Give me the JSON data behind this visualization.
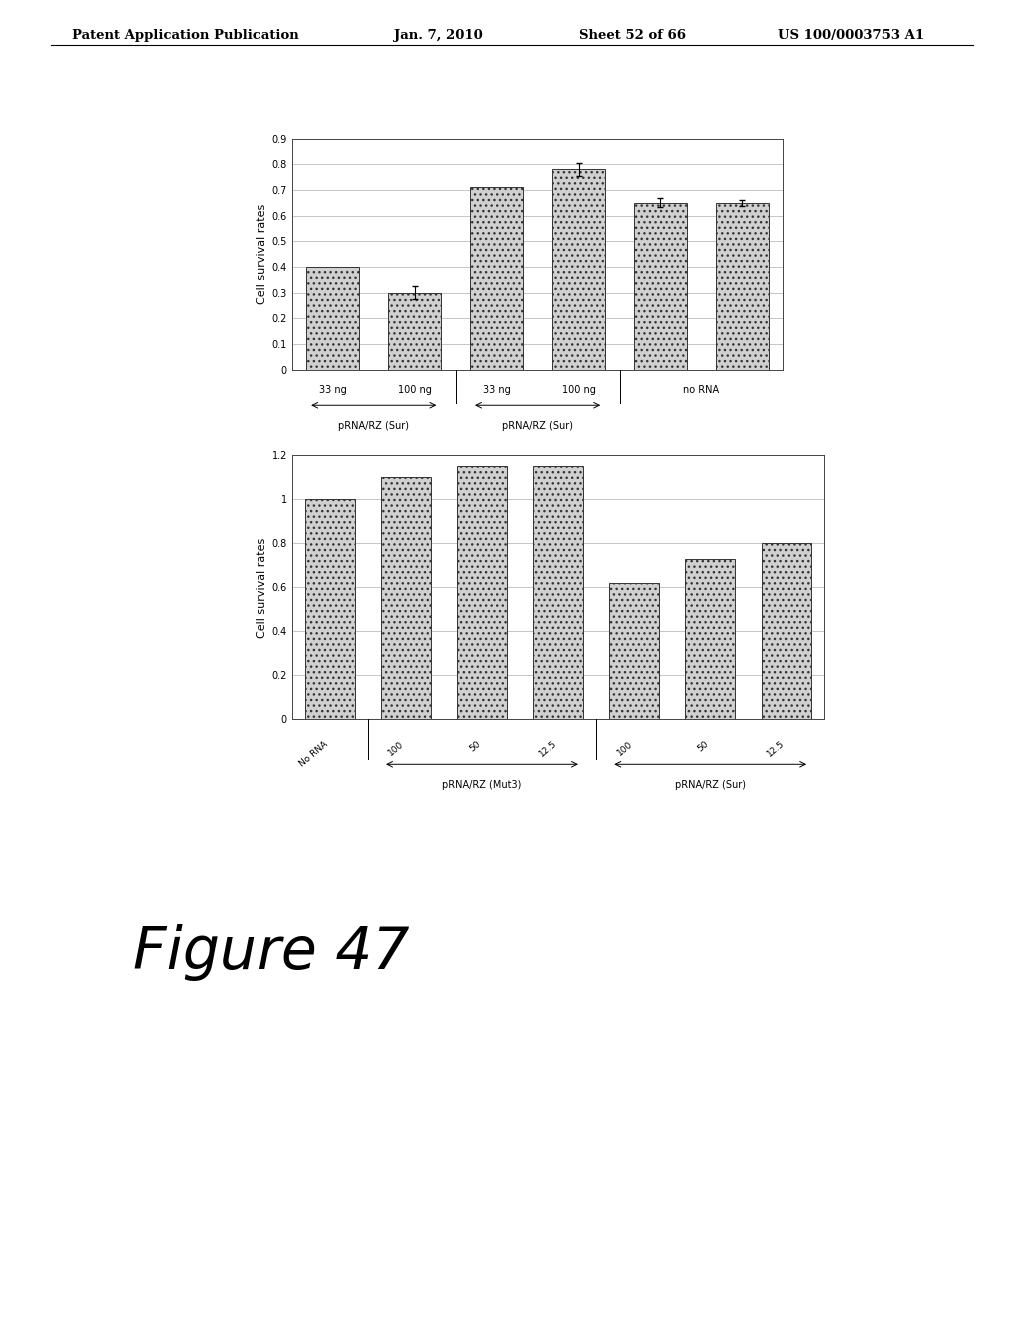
{
  "chart1": {
    "bars": [
      0.4,
      0.3,
      0.71,
      0.78,
      0.65,
      0.65
    ],
    "errors": [
      0.0,
      0.025,
      0.0,
      0.025,
      0.018,
      0.012
    ],
    "error_mask": [
      false,
      true,
      false,
      true,
      true,
      true
    ],
    "ylabel": "Cell survival rates",
    "ylim": [
      0,
      0.9
    ],
    "yticks": [
      0,
      0.1,
      0.2,
      0.3,
      0.4,
      0.5,
      0.6,
      0.7,
      0.8,
      0.9
    ],
    "ytick_labels": [
      "0",
      "0.1",
      "0.2",
      "0.3",
      "0.4",
      "0.5",
      "0.6",
      "0.7",
      "0.8",
      "0.9"
    ],
    "group_labels": [
      "33 ng",
      "100 ng",
      "33 ng",
      "100 ng"
    ],
    "arrow1_label": "pRNA/RZ (Sur)",
    "arrow2_label": "pRNA/RZ (Sur)",
    "last_label": "no RNA",
    "bar_positions": [
      0,
      1,
      2,
      3,
      4,
      5
    ],
    "bar_width": 0.65,
    "bar_color": "#d0d0d0",
    "bar_edgecolor": "#333333",
    "hatch": "..."
  },
  "chart2": {
    "bars": [
      1.0,
      1.1,
      1.15,
      1.15,
      0.62,
      0.73,
      0.8
    ],
    "ylabel": "Cell survival rates",
    "ylim": [
      0,
      1.2
    ],
    "yticks": [
      0,
      0.2,
      0.4,
      0.6,
      0.8,
      1.0,
      1.2
    ],
    "ytick_labels": [
      "0",
      "0.2",
      "0.4",
      "0.6",
      "0.8",
      "1",
      "1.2"
    ],
    "xticklabels": [
      "No RNA",
      "100",
      "50",
      "12.5",
      "100",
      "50",
      "12.5"
    ],
    "arrow1_label": "pRNA/RZ (Mut3)",
    "arrow2_label": "pRNA/RZ (Sur)",
    "bar_positions": [
      0,
      1,
      2,
      3,
      4,
      5,
      6
    ],
    "bar_width": 0.65,
    "bar_color": "#d0d0d0",
    "bar_edgecolor": "#333333",
    "hatch": "..."
  },
  "figure_label": "Figure 47",
  "header_left": "Patent Application Publication",
  "header_date": "Jan. 7, 2010",
  "header_sheet": "Sheet 52 of 66",
  "header_right": "US 100/0003753 A1",
  "background_color": "#ffffff",
  "font_color": "#000000"
}
